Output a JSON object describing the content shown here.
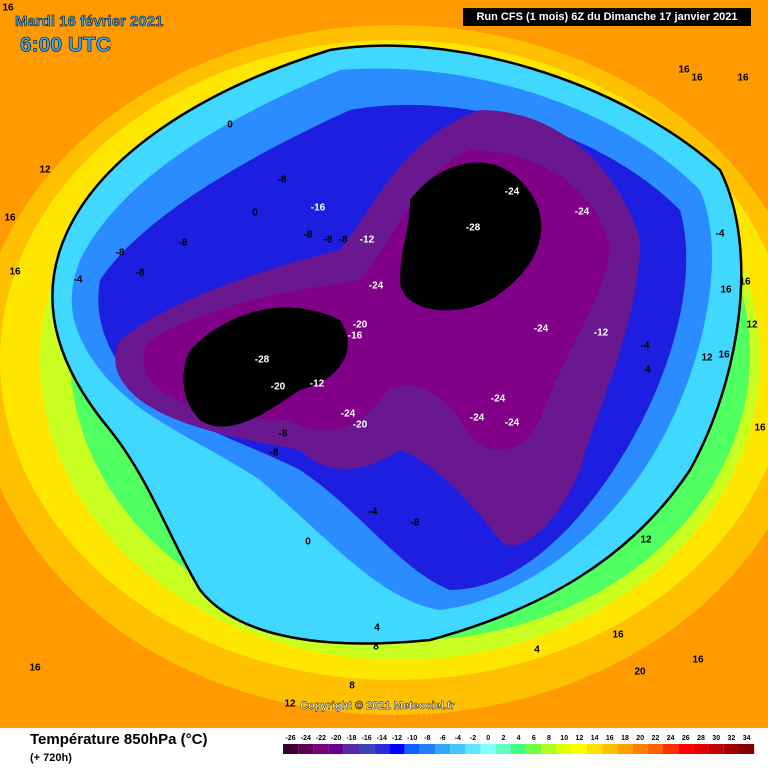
{
  "header": {
    "date": "Mardi 16 février 2021",
    "time": "6:00 UTC",
    "run": "Run CFS (1 mois) 6Z du Dimanche 17 janvier 2021"
  },
  "footer": {
    "title": "Température 850hPa (°C)",
    "lead": "(+ 720h)",
    "copyright": "Copyright © 2021 Meteociel.fr"
  },
  "scale": {
    "values": [
      -26,
      -24,
      -22,
      -20,
      -18,
      -16,
      -14,
      -12,
      -10,
      -8,
      -6,
      -4,
      -2,
      0,
      2,
      4,
      6,
      8,
      10,
      12,
      14,
      16,
      18,
      20,
      22,
      24,
      26,
      28,
      30,
      32,
      34
    ],
    "colors": [
      "#3a0030",
      "#5a0058",
      "#780078",
      "#6a0090",
      "#5828a8",
      "#4040b8",
      "#2a2ad8",
      "#0000ff",
      "#1060ff",
      "#2080ff",
      "#30a8ff",
      "#40c8ff",
      "#60e4ff",
      "#80ffff",
      "#60ffc0",
      "#40ff80",
      "#70ff40",
      "#b0ff20",
      "#e0ff00",
      "#ffff00",
      "#ffe000",
      "#ffc000",
      "#ffa000",
      "#ff8000",
      "#ff6000",
      "#ff3000",
      "#ff0000",
      "#e00000",
      "#c00000",
      "#a00000",
      "#800000"
    ]
  },
  "contour_labels": [
    16,
    0,
    12,
    16,
    16,
    -8,
    -16,
    -8,
    -8,
    -8,
    -12,
    -8,
    -8,
    -8,
    -4,
    0,
    -28,
    -24,
    -24,
    -4,
    -24,
    -20,
    -16,
    -24,
    -12,
    -28,
    -20,
    -12,
    -24,
    -20,
    -24,
    -24,
    -24,
    -8,
    -8,
    -4,
    -8,
    0,
    4,
    8,
    4,
    12,
    16,
    20,
    16,
    16,
    8,
    12,
    16,
    16,
    16,
    16,
    16,
    12,
    16,
    12,
    -4,
    4,
    16
  ]
}
